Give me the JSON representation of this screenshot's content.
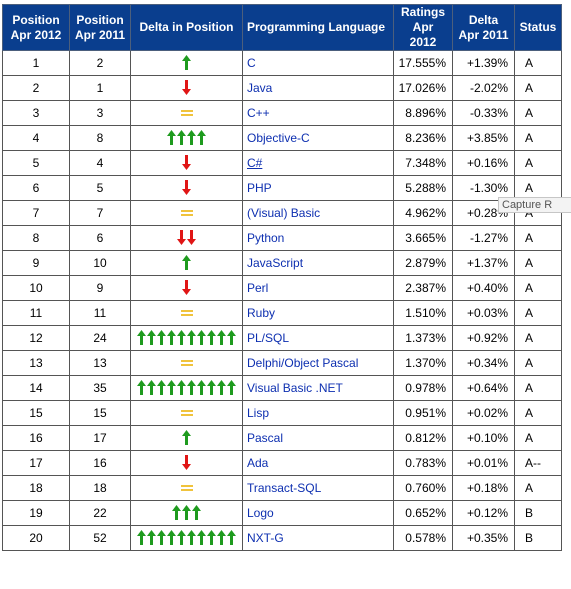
{
  "table": {
    "headers": {
      "pos2012": [
        "Position",
        "Apr 2012"
      ],
      "pos2011": [
        "Position",
        "Apr 2011"
      ],
      "delta": "Delta in Position",
      "lang": "Programming Language",
      "ratings": [
        "Ratings",
        "Apr 2012"
      ],
      "delta_rating": [
        "Delta",
        "Apr 2011"
      ],
      "status": "Status"
    },
    "rows": [
      {
        "p2012": "1",
        "p2011": "2",
        "dir": "up",
        "n": 1,
        "lang": "C",
        "rating": "17.555%",
        "delta": "+1.39%",
        "status": "A"
      },
      {
        "p2012": "2",
        "p2011": "1",
        "dir": "down",
        "n": 1,
        "lang": "Java",
        "rating": "17.026%",
        "delta": "-2.02%",
        "status": "A"
      },
      {
        "p2012": "3",
        "p2011": "3",
        "dir": "same",
        "n": 1,
        "lang": "C++",
        "rating": "8.896%",
        "delta": "-0.33%",
        "status": "A"
      },
      {
        "p2012": "4",
        "p2011": "8",
        "dir": "up",
        "n": 4,
        "lang": "Objective-C",
        "rating": "8.236%",
        "delta": "+3.85%",
        "status": "A"
      },
      {
        "p2012": "5",
        "p2011": "4",
        "dir": "down",
        "n": 1,
        "lang": "C#",
        "rating": "7.348%",
        "delta": "+0.16%",
        "status": "A",
        "underline": true
      },
      {
        "p2012": "6",
        "p2011": "5",
        "dir": "down",
        "n": 1,
        "lang": "PHP",
        "rating": "5.288%",
        "delta": "-1.30%",
        "status": "A"
      },
      {
        "p2012": "7",
        "p2011": "7",
        "dir": "same",
        "n": 1,
        "lang": "(Visual) Basic",
        "rating": "4.962%",
        "delta": "+0.28%",
        "status": "A"
      },
      {
        "p2012": "8",
        "p2011": "6",
        "dir": "down",
        "n": 2,
        "lang": "Python",
        "rating": "3.665%",
        "delta": "-1.27%",
        "status": "A"
      },
      {
        "p2012": "9",
        "p2011": "10",
        "dir": "up",
        "n": 1,
        "lang": "JavaScript",
        "rating": "2.879%",
        "delta": "+1.37%",
        "status": "A"
      },
      {
        "p2012": "10",
        "p2011": "9",
        "dir": "down",
        "n": 1,
        "lang": "Perl",
        "rating": "2.387%",
        "delta": "+0.40%",
        "status": "A"
      },
      {
        "p2012": "11",
        "p2011": "11",
        "dir": "same",
        "n": 1,
        "lang": "Ruby",
        "rating": "1.510%",
        "delta": "+0.03%",
        "status": "A"
      },
      {
        "p2012": "12",
        "p2011": "24",
        "dir": "up",
        "n": 10,
        "lang": "PL/SQL",
        "rating": "1.373%",
        "delta": "+0.92%",
        "status": "A"
      },
      {
        "p2012": "13",
        "p2011": "13",
        "dir": "same",
        "n": 1,
        "lang": "Delphi/Object Pascal",
        "rating": "1.370%",
        "delta": "+0.34%",
        "status": "A"
      },
      {
        "p2012": "14",
        "p2011": "35",
        "dir": "up",
        "n": 10,
        "lang": "Visual Basic .NET",
        "rating": "0.978%",
        "delta": "+0.64%",
        "status": "A"
      },
      {
        "p2012": "15",
        "p2011": "15",
        "dir": "same",
        "n": 1,
        "lang": "Lisp",
        "rating": "0.951%",
        "delta": "+0.02%",
        "status": "A"
      },
      {
        "p2012": "16",
        "p2011": "17",
        "dir": "up",
        "n": 1,
        "lang": "Pascal",
        "rating": "0.812%",
        "delta": "+0.10%",
        "status": "A"
      },
      {
        "p2012": "17",
        "p2011": "16",
        "dir": "down",
        "n": 1,
        "lang": "Ada",
        "rating": "0.783%",
        "delta": "+0.01%",
        "status": "A--"
      },
      {
        "p2012": "18",
        "p2011": "18",
        "dir": "same",
        "n": 1,
        "lang": "Transact-SQL",
        "rating": "0.760%",
        "delta": "+0.18%",
        "status": "A"
      },
      {
        "p2012": "19",
        "p2011": "22",
        "dir": "up",
        "n": 3,
        "lang": "Logo",
        "rating": "0.652%",
        "delta": "+0.12%",
        "status": "B"
      },
      {
        "p2012": "20",
        "p2011": "52",
        "dir": "up",
        "n": 10,
        "lang": "NXT-G",
        "rating": "0.578%",
        "delta": "+0.35%",
        "status": "B"
      }
    ]
  },
  "tooltip": {
    "text": "Capture R"
  },
  "colors": {
    "header_bg": "#0a3e8e",
    "up": "#1e9b1e",
    "down": "#e01515",
    "same": "#f0c33c",
    "link": "#0d2fb0"
  }
}
